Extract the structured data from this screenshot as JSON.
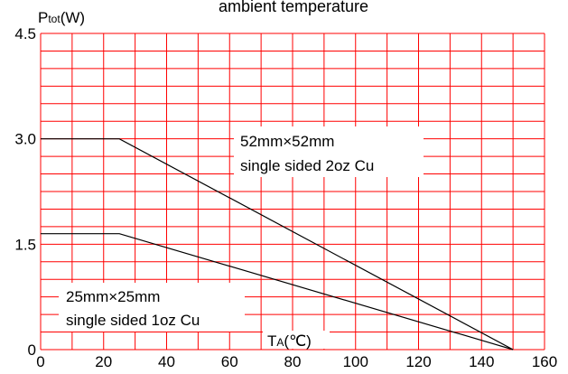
{
  "chart_data": {
    "type": "line",
    "title": "ambient temperature",
    "ylabel": "P",
    "ylabel_sub": "tot",
    "ylabel_unit": "(W)",
    "xlabel": "T",
    "xlabel_sub": "A",
    "xlabel_unit": "(℃)",
    "xlim": [
      0,
      160
    ],
    "ylim": [
      0,
      4.5
    ],
    "x_ticks": [
      0,
      20,
      40,
      60,
      80,
      100,
      120,
      140,
      160
    ],
    "y_ticks": [
      {
        "value": 0,
        "label": "0"
      },
      {
        "value": 1.5,
        "label": "1.5"
      },
      {
        "value": 3.0,
        "label": "3.0"
      },
      {
        "value": 4.5,
        "label": "4.5"
      }
    ],
    "grid": true,
    "grid_color": "#ff0000",
    "series": [
      {
        "label_lines": [
          "52mm×52mm",
          "single sided 2oz Cu"
        ],
        "x": [
          0,
          25,
          150
        ],
        "y": [
          3.0,
          3.0,
          0
        ],
        "color": "#000000"
      },
      {
        "label_lines": [
          "25mm×25mm",
          "single sided 1oz Cu"
        ],
        "x": [
          0,
          25,
          150
        ],
        "y": [
          1.65,
          1.65,
          0
        ],
        "color": "#000000"
      }
    ]
  }
}
